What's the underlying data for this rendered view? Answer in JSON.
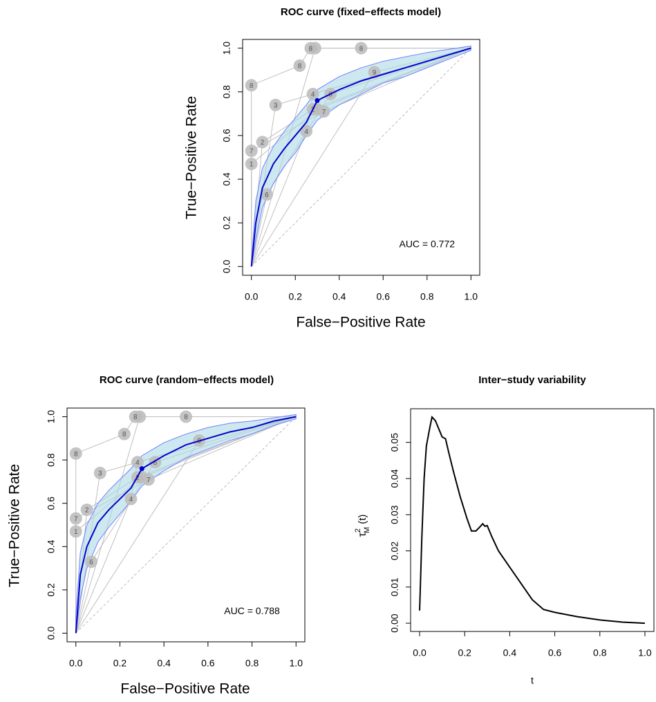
{
  "chart_data": [
    {
      "type": "sroc",
      "title": "ROC curve (fixed−effects model)",
      "xlabel": "False−Positive Rate",
      "ylabel": "True−Positive Rate",
      "xlim": [
        -0.04,
        1.04
      ],
      "ylim": [
        -0.04,
        1.04
      ],
      "xticks": [
        {
          "value": 0,
          "label": "0.0"
        },
        0.2,
        0.4,
        0.6,
        0.8,
        {
          "value": 1,
          "label": "1.0"
        }
      ],
      "yticks": [
        {
          "value": 0,
          "label": "0.0"
        },
        0.2,
        0.4,
        0.6,
        0.8,
        {
          "value": 1,
          "label": "1.0"
        }
      ],
      "annotation": "AUC = 0.772",
      "study_color": "#bebebe",
      "curve_color": "#0000cd",
      "band_color": "#add8e6",
      "band_edge": "#6f7fff",
      "series": [
        {
          "name": "1",
          "x": [
            0,
            0.3
          ],
          "values": [
            0.47,
            0.72
          ]
        },
        {
          "name": "2",
          "x": [
            0.05,
            0.28
          ],
          "values": [
            0.57,
            0.72
          ]
        },
        {
          "name": "3",
          "x": [
            0.11
          ],
          "values": [
            0.74
          ]
        },
        {
          "name": "4",
          "x": [
            0.25,
            0.28
          ],
          "values": [
            0.62,
            0.79
          ]
        },
        {
          "name": "5",
          "x": [
            0.29
          ],
          "values": [
            1.0
          ]
        },
        {
          "name": "6",
          "x": [
            0.07,
            0.36
          ],
          "values": [
            0.33,
            0.79
          ]
        },
        {
          "name": "7",
          "x": [
            0,
            0.33
          ],
          "values": [
            0.53,
            0.71
          ]
        },
        {
          "name": "8",
          "x": [
            0,
            0.22,
            0.27,
            0.5
          ],
          "values": [
            0.83,
            0.92,
            1.0,
            1.0
          ]
        },
        {
          "name": "9",
          "x": [
            0.56
          ],
          "values": [
            0.89
          ]
        }
      ],
      "summary_curve": {
        "x": [
          0,
          0.02,
          0.05,
          0.1,
          0.15,
          0.2,
          0.25,
          0.3,
          0.4,
          0.5,
          0.6,
          0.7,
          0.8,
          0.9,
          1.0
        ],
        "values": [
          0,
          0.2,
          0.36,
          0.47,
          0.54,
          0.6,
          0.66,
          0.76,
          0.81,
          0.85,
          0.88,
          0.91,
          0.94,
          0.97,
          1.0
        ],
        "lower": [
          0,
          0.12,
          0.27,
          0.38,
          0.46,
          0.52,
          0.6,
          0.67,
          0.74,
          0.79,
          0.84,
          0.87,
          0.91,
          0.95,
          0.99
        ],
        "upper": [
          0.02,
          0.3,
          0.45,
          0.55,
          0.62,
          0.68,
          0.74,
          0.81,
          0.87,
          0.91,
          0.94,
          0.96,
          0.98,
          0.995,
          1.01
        ]
      },
      "summary_point": {
        "x": 0.3,
        "y": 0.76
      }
    },
    {
      "type": "sroc",
      "title": "ROC curve (random−effects model)",
      "xlabel": "False−Positive Rate",
      "ylabel": "True−Positive Rate",
      "xlim": [
        -0.04,
        1.04
      ],
      "ylim": [
        -0.04,
        1.04
      ],
      "xticks": [
        {
          "value": 0,
          "label": "0.0"
        },
        0.2,
        0.4,
        0.6,
        0.8,
        {
          "value": 1,
          "label": "1.0"
        }
      ],
      "yticks": [
        {
          "value": 0,
          "label": "0.0"
        },
        0.2,
        0.4,
        0.6,
        0.8,
        {
          "value": 1,
          "label": "1.0"
        }
      ],
      "annotation": "AUC = 0.788",
      "study_color": "#bebebe",
      "curve_color": "#0000cd",
      "band_color": "#add8e6",
      "band_edge": "#6f7fff",
      "series": [
        {
          "name": "1",
          "x": [
            0,
            0.3
          ],
          "values": [
            0.47,
            0.72
          ]
        },
        {
          "name": "2",
          "x": [
            0.05,
            0.28
          ],
          "values": [
            0.57,
            0.72
          ]
        },
        {
          "name": "3",
          "x": [
            0.11
          ],
          "values": [
            0.74
          ]
        },
        {
          "name": "4",
          "x": [
            0.25,
            0.28
          ],
          "values": [
            0.62,
            0.79
          ]
        },
        {
          "name": "5",
          "x": [
            0.29
          ],
          "values": [
            1.0
          ]
        },
        {
          "name": "6",
          "x": [
            0.07,
            0.36
          ],
          "values": [
            0.33,
            0.79
          ]
        },
        {
          "name": "7",
          "x": [
            0,
            0.33
          ],
          "values": [
            0.53,
            0.71
          ]
        },
        {
          "name": "8",
          "x": [
            0,
            0.22,
            0.27,
            0.5
          ],
          "values": [
            0.83,
            0.92,
            1.0,
            1.0
          ]
        },
        {
          "name": "9",
          "x": [
            0.56
          ],
          "values": [
            0.89
          ]
        }
      ],
      "summary_curve": {
        "x": [
          0,
          0.02,
          0.05,
          0.1,
          0.15,
          0.2,
          0.25,
          0.3,
          0.4,
          0.5,
          0.6,
          0.7,
          0.8,
          0.9,
          1.0
        ],
        "values": [
          0,
          0.27,
          0.4,
          0.51,
          0.57,
          0.62,
          0.67,
          0.76,
          0.82,
          0.87,
          0.9,
          0.93,
          0.95,
          0.98,
          1.0
        ],
        "lower": [
          0,
          0.16,
          0.3,
          0.42,
          0.49,
          0.55,
          0.61,
          0.68,
          0.75,
          0.81,
          0.85,
          0.89,
          0.92,
          0.96,
          0.99
        ],
        "upper": [
          0.08,
          0.37,
          0.5,
          0.6,
          0.66,
          0.71,
          0.76,
          0.82,
          0.88,
          0.92,
          0.95,
          0.97,
          0.98,
          0.995,
          1.01
        ]
      },
      "summary_point": {
        "x": 0.3,
        "y": 0.76
      }
    },
    {
      "type": "line",
      "title": "Inter−study variability",
      "xlabel": "t",
      "ylabel": {
        "symbol": "τ",
        "superscript": "2",
        "subscript": "M",
        "suffix": "(t)"
      },
      "xlim": [
        -0.04,
        1.04
      ],
      "ylim": [
        -0.00228,
        0.0593
      ],
      "xticks": [
        {
          "value": 0,
          "label": "0.0"
        },
        0.2,
        0.4,
        0.6,
        0.8,
        {
          "value": 1,
          "label": "1.0"
        }
      ],
      "yticks": [
        {
          "value": 0,
          "label": "0.00"
        },
        0.01,
        0.02,
        0.03,
        0.04,
        0.05
      ],
      "color": "#000000",
      "x": [
        0,
        0.01,
        0.02,
        0.03,
        0.045,
        0.055,
        0.07,
        0.09,
        0.1,
        0.115,
        0.13,
        0.15,
        0.18,
        0.21,
        0.23,
        0.25,
        0.27,
        0.28,
        0.29,
        0.3,
        0.32,
        0.35,
        0.4,
        0.45,
        0.5,
        0.55,
        0.6,
        0.7,
        0.8,
        0.9,
        1.0
      ],
      "values": [
        0.0035,
        0.024,
        0.04,
        0.049,
        0.054,
        0.057,
        0.056,
        0.053,
        0.0515,
        0.051,
        0.047,
        0.042,
        0.035,
        0.029,
        0.0255,
        0.0255,
        0.0268,
        0.0275,
        0.0268,
        0.027,
        0.024,
        0.02,
        0.0155,
        0.011,
        0.0065,
        0.0038,
        0.003,
        0.0018,
        0.0009,
        0.0003,
        0.0
      ]
    }
  ]
}
